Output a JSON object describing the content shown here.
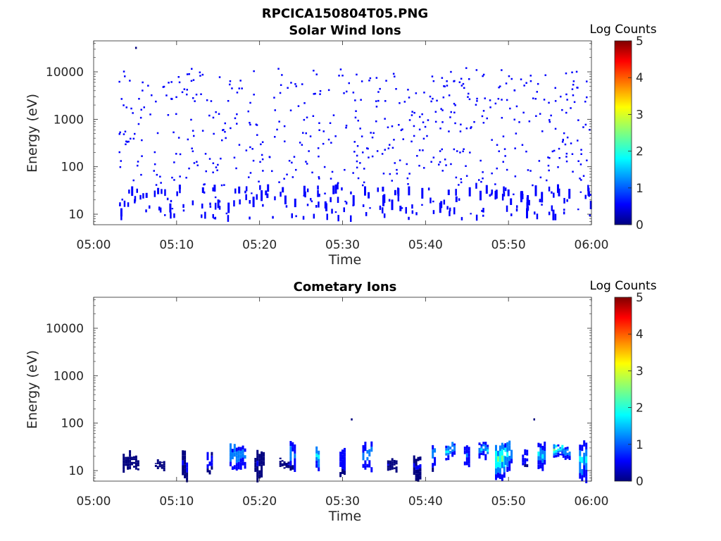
{
  "figure_title": "RPCICA150804T05.PNG",
  "colormap": [
    "#00007f",
    "#0000ff",
    "#007fff",
    "#00ffff",
    "#7fff7f",
    "#ffff00",
    "#ff7f00",
    "#ff0000",
    "#7f0000"
  ],
  "axes_color": "#262626",
  "chart_data": [
    {
      "type": "heatmap",
      "title": "Solar Wind Ions",
      "xlabel": "Time",
      "ylabel": "Energy (eV)",
      "y_scale": "log",
      "xlim": [
        "05:00",
        "06:00"
      ],
      "ylim": [
        6,
        45000
      ],
      "x_ticks": [
        "05:00",
        "05:10",
        "05:20",
        "05:30",
        "05:40",
        "05:50",
        "06:00"
      ],
      "y_ticks": [
        "10",
        "100",
        "1000",
        "10000"
      ],
      "colorbar": {
        "label": "Log Counts",
        "range": [
          0,
          5
        ],
        "ticks": [
          "0",
          "1",
          "2",
          "3",
          "4",
          "5"
        ]
      },
      "data_start": "05:03",
      "data_end": "06:00",
      "dominant_level": 0.4,
      "description_note": "sparse single-count pixels scattered over 10 eV - 12 keV"
    },
    {
      "type": "heatmap",
      "title": "Cometary Ions",
      "xlabel": "Time",
      "ylabel": "Energy (eV)",
      "y_scale": "log",
      "xlim": [
        "05:00",
        "06:00"
      ],
      "ylim": [
        6,
        45000
      ],
      "x_ticks": [
        "05:00",
        "05:10",
        "05:20",
        "05:30",
        "05:40",
        "05:50",
        "06:00"
      ],
      "y_ticks": [
        "10",
        "100",
        "1000",
        "10000"
      ],
      "colorbar": {
        "label": "Log Counts",
        "range": [
          0,
          5
        ],
        "ticks": [
          "0",
          "1",
          "2",
          "3",
          "4",
          "5"
        ]
      },
      "bursts": [
        {
          "t": "05:04",
          "e_low": 10,
          "e_high": 26,
          "peak": 0.3
        },
        {
          "t": "05:05",
          "e_low": 10,
          "e_high": 22,
          "peak": 0.2
        },
        {
          "t": "05:08",
          "e_low": 10,
          "e_high": 18,
          "peak": 0.2
        },
        {
          "t": "05:11",
          "e_low": 6,
          "e_high": 26,
          "peak": 0.4
        },
        {
          "t": "05:14",
          "e_low": 8,
          "e_high": 30,
          "peak": 0.6
        },
        {
          "t": "05:17",
          "e_low": 10,
          "e_high": 36,
          "peak": 1.8
        },
        {
          "t": "05:18",
          "e_low": 10,
          "e_high": 34,
          "peak": 1.4
        },
        {
          "t": "05:20",
          "e_low": 6,
          "e_high": 26,
          "peak": 0.3
        },
        {
          "t": "05:23",
          "e_low": 10,
          "e_high": 18,
          "peak": 0.3
        },
        {
          "t": "05:24",
          "e_low": 10,
          "e_high": 42,
          "peak": 1.3
        },
        {
          "t": "05:27",
          "e_low": 10,
          "e_high": 36,
          "peak": 2.0
        },
        {
          "t": "05:30",
          "e_low": 8,
          "e_high": 34,
          "peak": 0.6
        },
        {
          "t": "05:33",
          "e_low": 10,
          "e_high": 40,
          "peak": 1.5
        },
        {
          "t": "05:36",
          "e_low": 10,
          "e_high": 18,
          "peak": 0.3
        },
        {
          "t": "05:39",
          "e_low": 6,
          "e_high": 22,
          "peak": 0.4
        },
        {
          "t": "05:41",
          "e_low": 10,
          "e_high": 42,
          "peak": 1.4
        },
        {
          "t": "05:43",
          "e_low": 18,
          "e_high": 40,
          "peak": 1.8
        },
        {
          "t": "05:45",
          "e_low": 10,
          "e_high": 36,
          "peak": 1.2
        },
        {
          "t": "05:47",
          "e_low": 18,
          "e_high": 40,
          "peak": 1.5
        },
        {
          "t": "05:49",
          "e_low": 6,
          "e_high": 42,
          "peak": 2.3
        },
        {
          "t": "05:50",
          "e_low": 10,
          "e_high": 42,
          "peak": 1.9
        },
        {
          "t": "05:52",
          "e_low": 10,
          "e_high": 30,
          "peak": 1.0
        },
        {
          "t": "05:54",
          "e_low": 10,
          "e_high": 40,
          "peak": 1.6
        },
        {
          "t": "05:56",
          "e_low": 18,
          "e_high": 40,
          "peak": 2.2
        },
        {
          "t": "05:57",
          "e_low": 18,
          "e_high": 36,
          "peak": 1.5
        },
        {
          "t": "05:59",
          "e_low": 6,
          "e_high": 42,
          "peak": 1.8
        }
      ],
      "isolated_points": [
        {
          "t": "05:31",
          "e": 120,
          "level": 0.2
        },
        {
          "t": "05:53",
          "e": 120,
          "level": 0.2
        }
      ]
    }
  ]
}
